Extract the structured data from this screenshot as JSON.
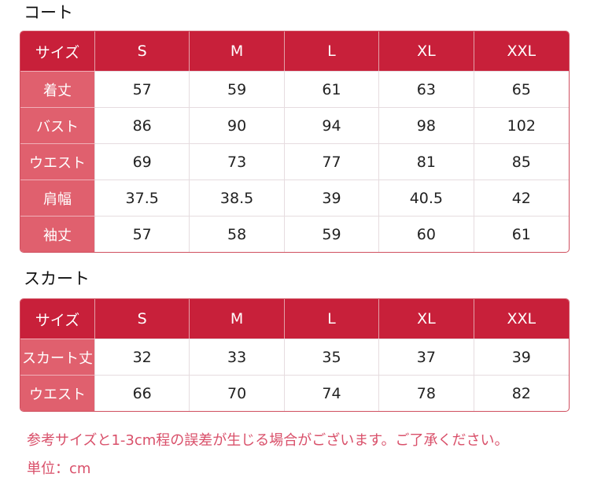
{
  "coat": {
    "title": "コート",
    "headers": [
      "サイズ",
      "S",
      "M",
      "L",
      "XL",
      "XXL"
    ],
    "rows": [
      [
        "着丈",
        "57",
        "59",
        "61",
        "63",
        "65"
      ],
      [
        "バスト",
        "86",
        "90",
        "94",
        "98",
        "102"
      ],
      [
        "ウエスト",
        "69",
        "73",
        "77",
        "81",
        "85"
      ],
      [
        "肩幅",
        "37.5",
        "38.5",
        "39",
        "40.5",
        "42"
      ],
      [
        "袖丈",
        "57",
        "58",
        "59",
        "60",
        "61"
      ]
    ]
  },
  "skirt": {
    "title": "スカート",
    "headers": [
      "サイズ",
      "S",
      "M",
      "L",
      "XL",
      "XXL"
    ],
    "rows": [
      [
        "スカート丈",
        "32",
        "33",
        "35",
        "37",
        "39"
      ],
      [
        "ウエスト",
        "66",
        "70",
        "74",
        "78",
        "82"
      ]
    ]
  },
  "notes": {
    "disclaimer": "参考サイズと1-3cm程の誤差が生じる場合がございます。ご了承ください。",
    "unit": "単位：cm"
  },
  "colors": {
    "header": "#c8203a",
    "label_column": "#e0606e",
    "note_text": "#d9506a"
  }
}
